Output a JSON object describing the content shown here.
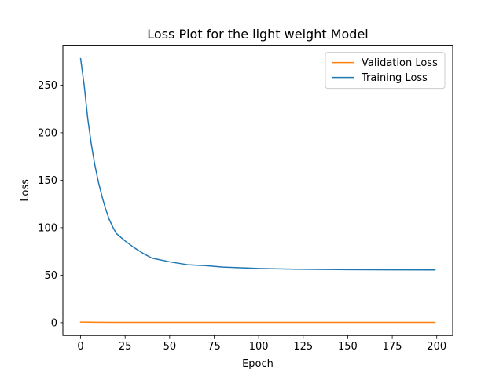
{
  "chart_data": {
    "type": "line",
    "title": "Loss Plot for the light weight Model",
    "xlabel": "Epoch",
    "ylabel": "Loss",
    "xlim": [
      -9.95,
      208.95
    ],
    "ylim": [
      -13.5,
      292.0
    ],
    "xticks": [
      0,
      25,
      50,
      75,
      100,
      125,
      150,
      175,
      200
    ],
    "yticks": [
      0,
      50,
      100,
      150,
      200,
      250
    ],
    "grid": false,
    "legend": "upper-right",
    "series": [
      {
        "name": "Validation Loss",
        "color": "#ff7f0e",
        "x": [
          0,
          10,
          20,
          50,
          100,
          150,
          199
        ],
        "y": [
          0.6,
          0.4,
          0.3,
          0.3,
          0.3,
          0.3,
          0.3
        ]
      },
      {
        "name": "Training Loss",
        "color": "#1f77b4",
        "x": [
          0,
          2,
          4,
          6,
          8,
          10,
          12,
          14,
          16,
          18,
          20,
          25,
          30,
          35,
          40,
          50,
          60,
          70,
          80,
          100,
          125,
          150,
          175,
          199
        ],
        "y": [
          278,
          250,
          215,
          188,
          166,
          148,
          133,
          120,
          109,
          101,
          94,
          86,
          79,
          73,
          68,
          64,
          61,
          60,
          58.5,
          57,
          56.2,
          55.8,
          55.6,
          55.5
        ]
      }
    ]
  }
}
